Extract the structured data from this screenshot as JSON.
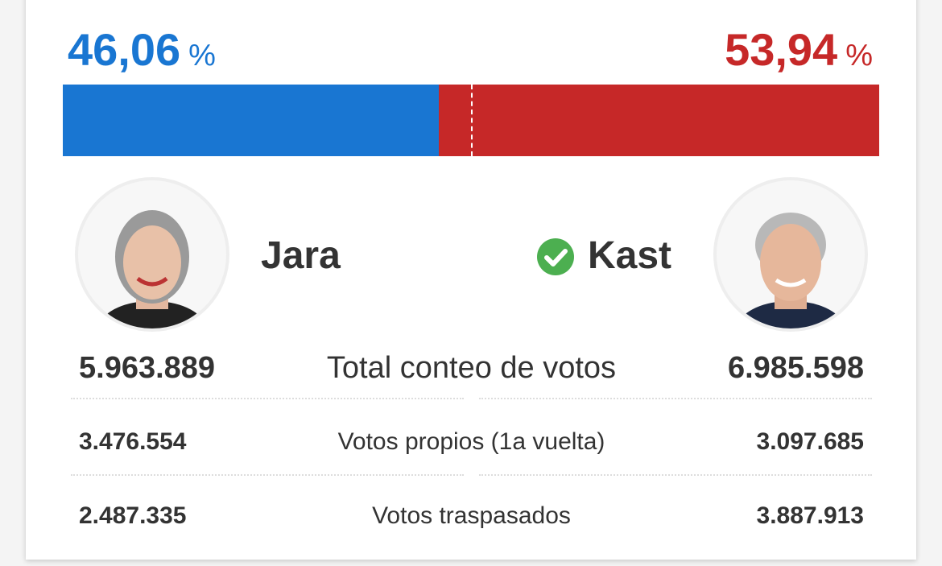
{
  "candidates": [
    {
      "name": "Jara",
      "share": {
        "value": 46.06,
        "label": "46,06"
      },
      "unit": "%",
      "color": "#1976d2",
      "winner": false
    },
    {
      "name": "Kast",
      "share": {
        "value": 53.94,
        "label": "53,94"
      },
      "unit": "%",
      "color": "#c62828",
      "winner": true
    }
  ],
  "rows": [
    {
      "label": "Total conteo de votos",
      "values": [
        "5.963.889",
        "6.985.598"
      ]
    },
    {
      "label": "Votos propios (1a vuelta)",
      "values": [
        "3.476.554",
        "3.097.685"
      ]
    },
    {
      "label": "Votos traspasados",
      "values": [
        "2.487.335",
        "3.887.913"
      ]
    }
  ]
}
